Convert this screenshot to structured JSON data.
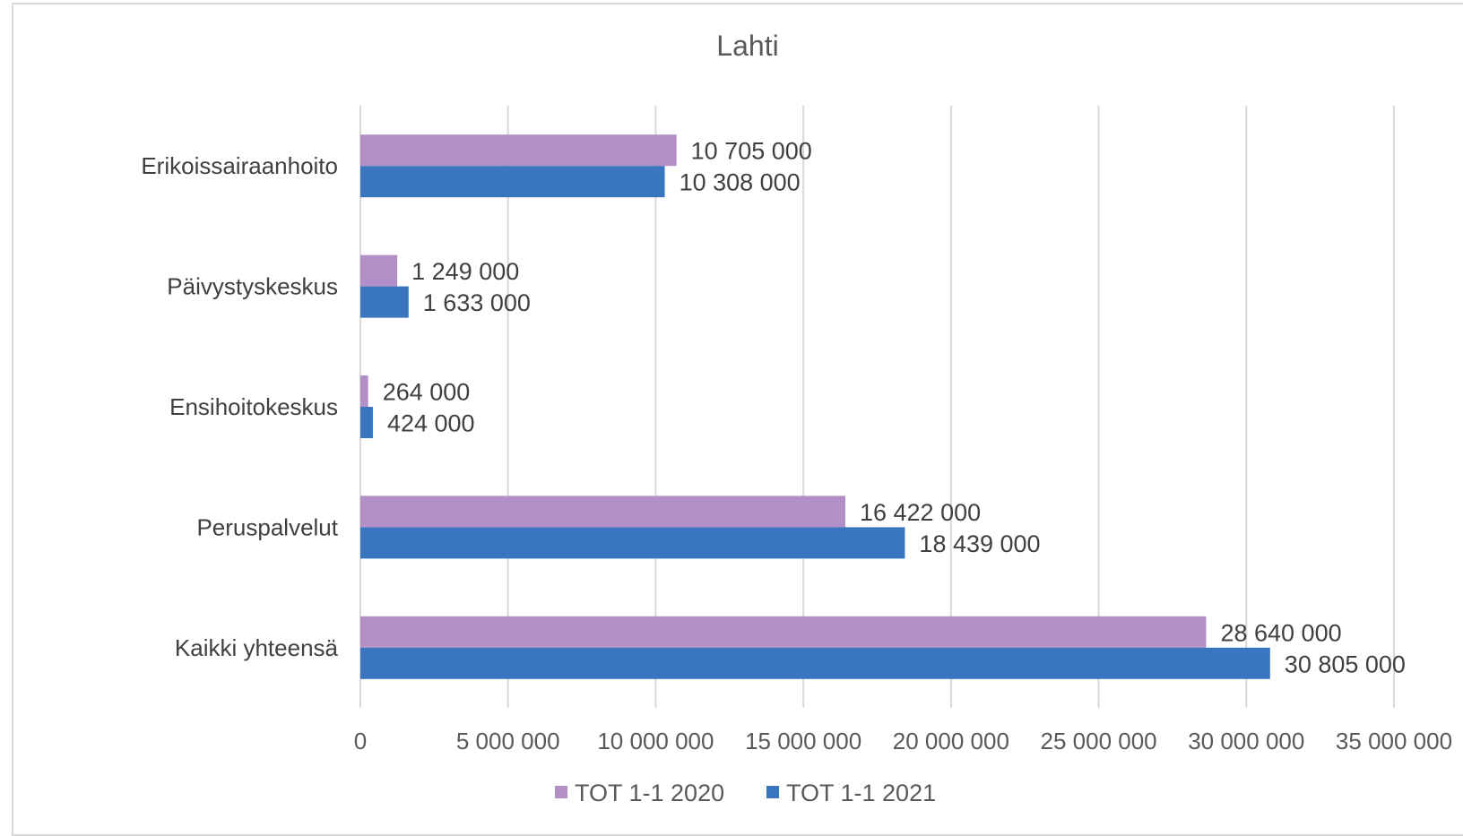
{
  "chart_data": {
    "type": "bar",
    "orientation": "horizontal",
    "title": "Lahti",
    "categories": [
      "Erikoissairaanhoito",
      "Päivystyskeskus",
      "Ensihoitokeskus",
      "Peruspalvelut",
      "Kaikki yhteensä"
    ],
    "series": [
      {
        "name": "TOT 1-1 2020",
        "color": "#b28fc6",
        "values": [
          10705000,
          1249000,
          264000,
          16422000,
          28640000
        ],
        "labels": [
          "10 705 000",
          "1 249 000",
          "264 000",
          "16 422 000",
          "28 640 000"
        ]
      },
      {
        "name": "TOT 1-1 2021",
        "color": "#3a76bf",
        "values": [
          10308000,
          1633000,
          424000,
          18439000,
          30805000
        ],
        "labels": [
          "10 308 000",
          "1 633 000",
          "424 000",
          "18 439 000",
          "30 805 000"
        ]
      }
    ],
    "xlim": [
      0,
      35000000
    ],
    "x_ticks": [
      0,
      5000000,
      10000000,
      15000000,
      20000000,
      25000000,
      30000000,
      35000000
    ],
    "x_tick_labels": [
      "0",
      "5 000 000",
      "10 000 000",
      "15 000 000",
      "20 000 000",
      "25 000 000",
      "30 000 000",
      "35 000 000"
    ],
    "grid": true,
    "gridline_color": "#d9d9d9",
    "legend_position": "bottom"
  }
}
